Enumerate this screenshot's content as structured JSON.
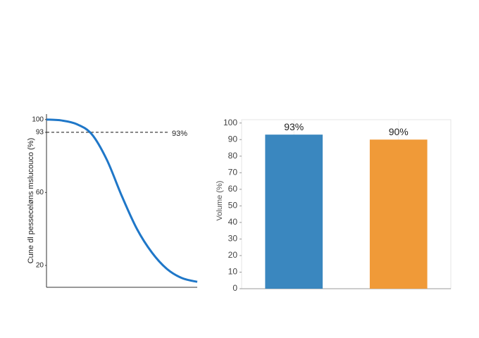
{
  "chart_data": [
    {
      "type": "line",
      "ylabel": "Cune dl pesseceløns mslucouco (%)",
      "x": [
        0,
        1,
        2,
        3,
        4,
        5,
        6,
        7,
        8,
        9,
        10
      ],
      "values": [
        100,
        99.5,
        97.5,
        92,
        78,
        58,
        40,
        27,
        18,
        13,
        11
      ],
      "color": "#1f77c8",
      "xlim": [
        0,
        10
      ],
      "ylim": [
        8,
        103
      ],
      "yticks": [
        100,
        93,
        60,
        20
      ],
      "reference": {
        "value": 93,
        "label": "93%"
      }
    },
    {
      "type": "bar",
      "ylabel": "Volume (%)",
      "categories": [
        null,
        null
      ],
      "values": [
        93,
        90
      ],
      "value_labels": [
        "93%",
        "90%"
      ],
      "colors": [
        "#3a87bf",
        "#f09a38"
      ],
      "ylim": [
        0,
        102
      ],
      "yticks": [
        0,
        10,
        20,
        30,
        40,
        50,
        60,
        70,
        80,
        90,
        100
      ],
      "grid": true
    }
  ]
}
